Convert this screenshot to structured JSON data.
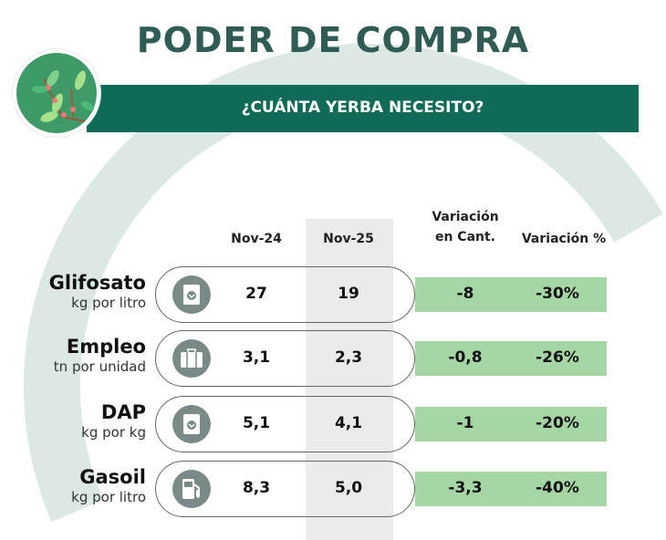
{
  "title": "PODER DE COMPRA",
  "subtitle": "¿CUÁNTA YERBA NECESITO?",
  "colors": {
    "primary": "#0f6b57",
    "title": "#2f5c55",
    "highlight": "#a6d6a4",
    "ring": "#dce8e4"
  },
  "headers": {
    "nov24": "Nov-24",
    "nov25": "Nov-25",
    "var_cant_1": "Variación",
    "var_cant_2": "en Cant.",
    "var_pct": "Variación %"
  },
  "rows": [
    {
      "name": "Glifosato",
      "unit": "kg por litro",
      "icon": "bag-icon",
      "nov24": "27",
      "nov25": "19",
      "var_cant": "-8",
      "var_pct": "-30%"
    },
    {
      "name": "Empleo",
      "unit": "tn por unidad",
      "icon": "briefcase-icon",
      "nov24": "3,1",
      "nov25": "2,3",
      "var_cant": "-0,8",
      "var_pct": "-26%"
    },
    {
      "name": "DAP",
      "unit": "kg por kg",
      "icon": "bag-icon",
      "nov24": "5,1",
      "nov25": "4,1",
      "var_cant": "-1",
      "var_pct": "-20%"
    },
    {
      "name": "Gasoil",
      "unit": "kg por litro",
      "icon": "fuel-pump-icon",
      "nov24": "8,3",
      "nov25": "5,0",
      "var_cant": "-3,3",
      "var_pct": "-40%"
    }
  ]
}
